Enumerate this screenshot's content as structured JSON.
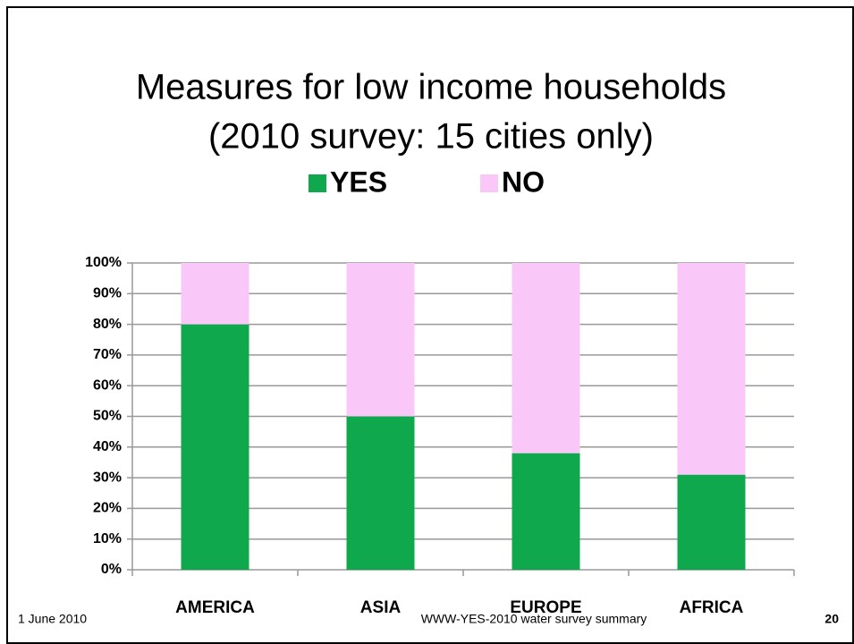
{
  "chart_data": {
    "type": "bar",
    "stacked": true,
    "title": "Measures for low income households",
    "subtitle": "(2010 survey: 15 cities only)",
    "categories": [
      "AMERICA",
      "ASIA",
      "EUROPE",
      "AFRICA"
    ],
    "series": [
      {
        "name": "YES",
        "color": "#10a84c",
        "values": [
          80,
          50,
          38,
          31
        ]
      },
      {
        "name": "NO",
        "color": "#f9c8f9",
        "values": [
          20,
          50,
          62,
          69
        ]
      }
    ],
    "ylim": [
      0,
      100
    ],
    "yticks": [
      {
        "value": 0,
        "label": "0%"
      },
      {
        "value": 10,
        "label": "10%"
      },
      {
        "value": 20,
        "label": "20%"
      },
      {
        "value": 30,
        "label": "30%"
      },
      {
        "value": 40,
        "label": "40%"
      },
      {
        "value": 50,
        "label": "50%"
      },
      {
        "value": 60,
        "label": "60%"
      },
      {
        "value": 70,
        "label": "70%"
      },
      {
        "value": 80,
        "label": "80%"
      },
      {
        "value": 90,
        "label": "90%"
      },
      {
        "value": 100,
        "label": "100%"
      }
    ],
    "grid": true,
    "legend": "top"
  },
  "footer": {
    "date": "1 June 2010",
    "text": "WWW-YES-2010 water survey summary",
    "page": "20"
  }
}
